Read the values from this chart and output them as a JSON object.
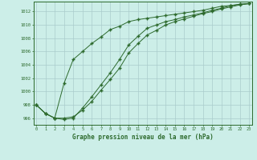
{
  "xlabel": "Graphe pression niveau de la mer (hPa)",
  "line_color": "#2d6a2d",
  "bg_color": "#cceee8",
  "grid_color": "#aacccc",
  "yticks": [
    996,
    998,
    1000,
    1002,
    1004,
    1006,
    1008,
    1010,
    1012
  ],
  "line1_x": [
    0,
    1,
    2,
    3,
    4,
    5,
    6,
    7,
    8,
    9,
    10,
    11,
    12,
    13,
    14,
    15,
    16,
    17,
    18,
    19,
    20,
    21,
    22,
    23
  ],
  "line1_y": [
    998.0,
    996.7,
    996.0,
    1001.2,
    1004.8,
    1006.0,
    1007.2,
    1008.2,
    1009.3,
    1009.8,
    1010.5,
    1010.8,
    1011.0,
    1011.2,
    1011.4,
    1011.6,
    1011.8,
    1012.0,
    1012.2,
    1012.5,
    1012.8,
    1012.9,
    1013.1,
    1013.2
  ],
  "line2_x": [
    0,
    1,
    2,
    3,
    4,
    5,
    6,
    7,
    8,
    9,
    10,
    11,
    12,
    13,
    14,
    15,
    16,
    17,
    18,
    19,
    20,
    21,
    22,
    23
  ],
  "line2_y": [
    998.0,
    996.7,
    996.0,
    995.8,
    996.0,
    997.5,
    999.2,
    1001.0,
    1002.8,
    1004.8,
    1007.0,
    1008.3,
    1009.5,
    1010.0,
    1010.5,
    1010.8,
    1011.2,
    1011.5,
    1011.8,
    1012.2,
    1012.5,
    1012.9,
    1013.1,
    1013.2
  ],
  "line3_x": [
    0,
    1,
    2,
    3,
    4,
    5,
    6,
    7,
    8,
    9,
    10,
    11,
    12,
    13,
    14,
    15,
    16,
    17,
    18,
    19,
    20,
    21,
    22,
    23
  ],
  "line3_y": [
    998.0,
    996.7,
    996.0,
    996.0,
    996.2,
    997.2,
    998.5,
    1000.2,
    1001.8,
    1003.5,
    1005.8,
    1007.2,
    1008.5,
    1009.2,
    1010.0,
    1010.5,
    1010.9,
    1011.3,
    1011.7,
    1012.0,
    1012.4,
    1012.7,
    1013.0,
    1013.2
  ],
  "ylim_min": 995.0,
  "ylim_max": 1013.5,
  "xlim_min": -0.3,
  "xlim_max": 23.3
}
